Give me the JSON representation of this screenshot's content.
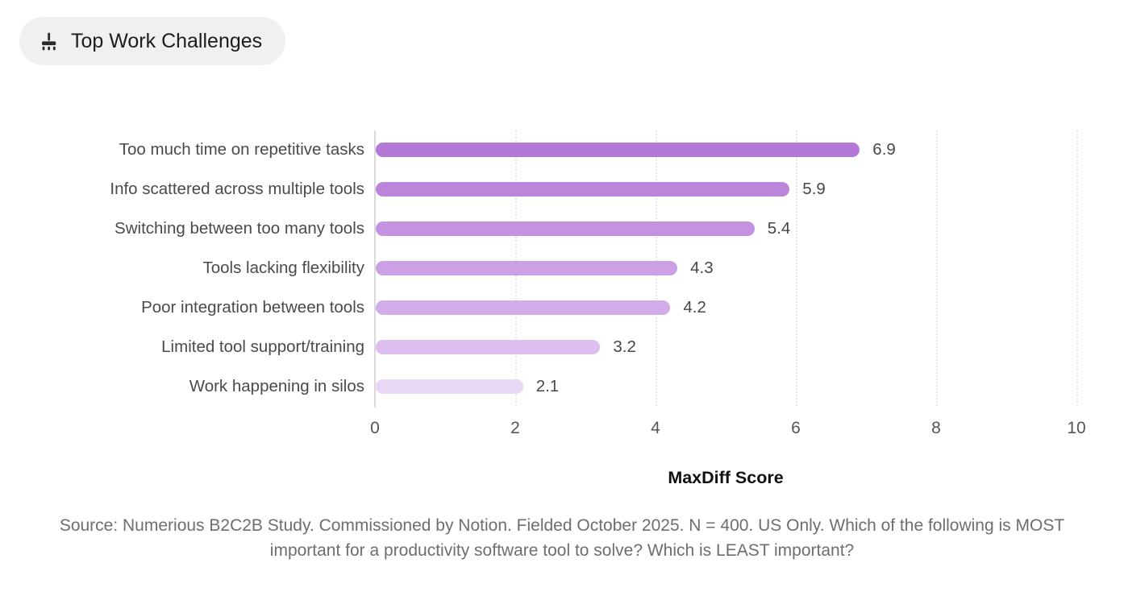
{
  "badge": {
    "label": "Top Work Challenges",
    "icon": "broom-icon"
  },
  "chart_data": {
    "type": "bar",
    "orientation": "horizontal",
    "title": "Top Work Challenges",
    "categories": [
      "Too much time on repetitive tasks",
      "Info scattered across multiple tools",
      "Switching between too many tools",
      "Tools lacking flexibility",
      "Poor integration between tools",
      "Limited tool support/training",
      "Work happening in silos"
    ],
    "values": [
      6.9,
      5.9,
      5.4,
      4.3,
      4.2,
      3.2,
      2.1
    ],
    "value_labels": [
      "6.9",
      "5.9",
      "5.4",
      "4.3",
      "4.2",
      "3.2",
      "2.1"
    ],
    "xlabel": "MaxDiff Score",
    "xlim": [
      0,
      10
    ],
    "xticks": [
      0,
      2,
      4,
      6,
      8,
      10
    ],
    "grid": "vertical-dotted",
    "legend": "none",
    "bar_colors": [
      "#b478d8",
      "#bb85dc",
      "#c392e0",
      "#cba0e5",
      "#d2adea",
      "#dcbfef",
      "#e9d7f6"
    ]
  },
  "footer": {
    "source": "Source: Numerious B2C2B Study. Commissioned by Notion. Fielded October 2025. N = 400. US Only. Which of the following is MOST important for a productivity software tool to solve? Which is LEAST important?"
  },
  "colors": {
    "background": "#ffffff",
    "badge_bg": "#f0f0ee",
    "title_text": "#1d1d1f",
    "label_text": "#4a4a4a",
    "tick_text": "#555555",
    "source_text": "#6e6e6e",
    "gridline": "#e6e6e6",
    "axis_line": "#dadada"
  }
}
